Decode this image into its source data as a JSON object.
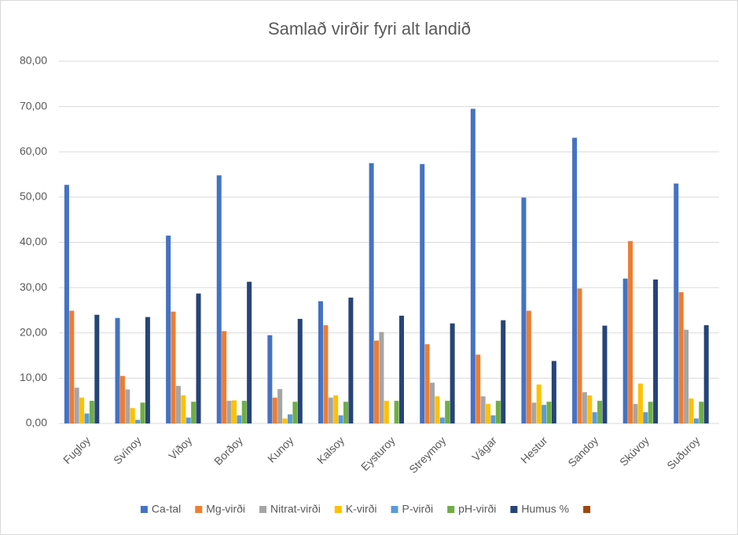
{
  "chart_data": {
    "type": "bar",
    "title": "Samlað virðir fyri alt landið",
    "categories": [
      "Fugloy",
      "Svínoy",
      "Viðoy",
      "Borðoy",
      "Kunoy",
      "Kalsoy",
      "Eysturoy",
      "Streymoy",
      "Vágar",
      "Hestur",
      "Sandoy",
      "Skúvoy",
      "Suðuroy"
    ],
    "series": [
      {
        "name": "Ca-tal",
        "color": "#4472c4",
        "values": [
          52.7,
          23.3,
          41.5,
          54.8,
          19.5,
          27.0,
          57.5,
          57.3,
          69.5,
          49.9,
          63.1,
          32.0,
          53.0
        ]
      },
      {
        "name": "Mg-virði",
        "color": "#ed7d31",
        "values": [
          24.9,
          10.5,
          24.7,
          20.4,
          5.7,
          21.7,
          18.3,
          17.5,
          15.2,
          24.9,
          29.8,
          40.3,
          29.0
        ]
      },
      {
        "name": "Nitrat-virði",
        "color": "#a5a5a5",
        "values": [
          7.9,
          7.5,
          8.3,
          5.0,
          7.6,
          5.7,
          20.2,
          9.0,
          6.0,
          4.6,
          6.9,
          4.3,
          20.7
        ]
      },
      {
        "name": "K-virði",
        "color": "#ffc000",
        "values": [
          5.7,
          3.4,
          6.2,
          5.1,
          1.1,
          6.2,
          5.0,
          6.0,
          4.3,
          8.6,
          6.2,
          8.8,
          5.5
        ]
      },
      {
        "name": "P-virði",
        "color": "#5b9bd5",
        "values": [
          2.2,
          0.8,
          1.3,
          1.8,
          2.0,
          1.8,
          null,
          1.3,
          1.8,
          4.1,
          2.5,
          2.5,
          1.1
        ]
      },
      {
        "name": "pH-virði",
        "color": "#70ad47",
        "values": [
          5.0,
          4.6,
          4.8,
          5.0,
          4.8,
          4.8,
          5.0,
          5.0,
          5.0,
          4.8,
          5.0,
          4.8,
          4.8
        ]
      },
      {
        "name": "Humus %",
        "color": "#264478",
        "values": [
          24.0,
          23.5,
          28.7,
          31.3,
          23.1,
          27.8,
          23.8,
          22.1,
          22.8,
          13.8,
          21.6,
          31.8,
          21.7
        ]
      },
      {
        "name": null,
        "color": "#9e480e",
        "values": [
          null,
          null,
          null,
          null,
          null,
          null,
          null,
          null,
          null,
          null,
          null,
          null,
          null
        ]
      }
    ],
    "ylim": [
      0,
      80
    ],
    "yticks": [
      {
        "value": 0,
        "label": "0,00"
      },
      {
        "value": 10,
        "label": "10,00"
      },
      {
        "value": 20,
        "label": "20,00"
      },
      {
        "value": 30,
        "label": "30,00"
      },
      {
        "value": 40,
        "label": "40,00"
      },
      {
        "value": 50,
        "label": "50,00"
      },
      {
        "value": 60,
        "label": "60,00"
      },
      {
        "value": 70,
        "label": "70,00"
      },
      {
        "value": 80,
        "label": "80,00"
      }
    ],
    "grid": true,
    "legend": "bottom"
  }
}
